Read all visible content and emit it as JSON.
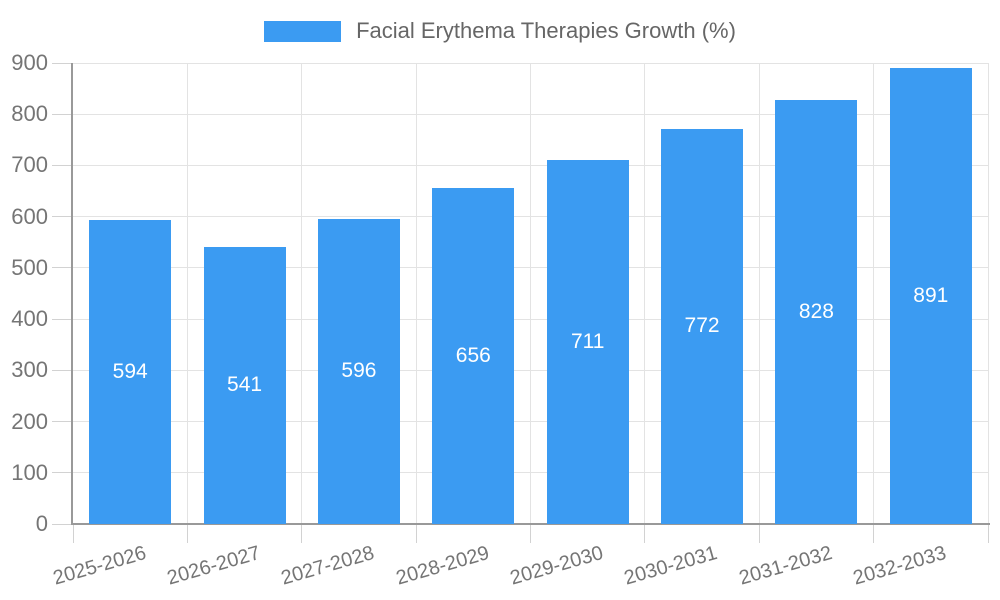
{
  "chart_data": {
    "type": "bar",
    "title": "Facial Erythema Therapies Growth (%)",
    "categories": [
      "2025-2026",
      "2026-2027",
      "2027-2028",
      "2028-2029",
      "2029-2030",
      "2030-2031",
      "2031-2032",
      "2032-2033"
    ],
    "series": [
      {
        "name": "Facial Erythema Therapies Growth (%)",
        "values": [
          594,
          541,
          596,
          656,
          711,
          772,
          828,
          891
        ]
      }
    ],
    "xlabel": "",
    "ylabel": "",
    "ylim": [
      0,
      900
    ],
    "ytick_step": 100,
    "ytick_labels": [
      "0",
      "100",
      "200",
      "300",
      "400",
      "500",
      "600",
      "700",
      "800",
      "900"
    ],
    "grid": true,
    "legend_position": "top-center",
    "bar_labels_shown": true
  },
  "colors": {
    "bar": "#3b9bf2",
    "grid": "#e3e3e3",
    "axis": "#999999",
    "tick": "#d2d2d2",
    "axis_label_text": "#757575",
    "title_text": "#666666",
    "bar_value_text": "#ffffff",
    "background": "#ffffff"
  }
}
